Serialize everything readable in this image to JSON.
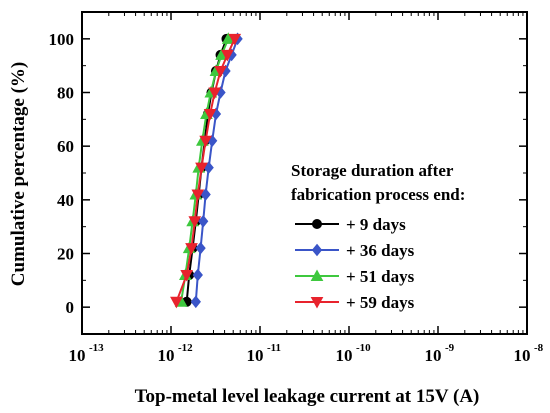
{
  "chart_data": {
    "type": "scatter",
    "xlabel": "Top-metal level leakage current at 15V (A)",
    "ylabel": "Cumulative percentage (%)",
    "xscale": "log",
    "xlim": [
      1e-13,
      1e-08
    ],
    "ylim": [
      -10,
      110
    ],
    "x_ticks": [
      {
        "value": 1e-13,
        "base": "10",
        "exp": "-13"
      },
      {
        "value": 1e-12,
        "base": "10",
        "exp": "-12"
      },
      {
        "value": 1e-11,
        "base": "10",
        "exp": "-11"
      },
      {
        "value": 1e-10,
        "base": "10",
        "exp": "-10"
      },
      {
        "value": 1e-09,
        "base": "10",
        "exp": "-9"
      },
      {
        "value": 1e-08,
        "base": "10",
        "exp": "-8"
      }
    ],
    "y_ticks": [
      0,
      20,
      40,
      60,
      80,
      100
    ],
    "legend_title_lines": [
      "Storage duration after",
      "fabrication process end:"
    ],
    "legend_position": "right",
    "grid": false,
    "series": [
      {
        "name": "+ 9  days",
        "color": "#000000",
        "marker": "circle",
        "x": [
          1.5e-12,
          1.6e-12,
          1.75e-12,
          1.9e-12,
          2.05e-12,
          2.2e-12,
          2.4e-12,
          2.6e-12,
          2.85e-12,
          3.2e-12,
          3.6e-12,
          4.2e-12
        ],
        "y": [
          2,
          12,
          22,
          32,
          42,
          52,
          62,
          72,
          80,
          88,
          94,
          100
        ]
      },
      {
        "name": "+ 36 days",
        "color": "#3a55c8",
        "marker": "diamond",
        "x": [
          1.9e-12,
          2e-12,
          2.15e-12,
          2.3e-12,
          2.45e-12,
          2.65e-12,
          2.9e-12,
          3.2e-12,
          3.6e-12,
          4.1e-12,
          4.8e-12,
          5.6e-12
        ],
        "y": [
          2,
          12,
          22,
          32,
          42,
          52,
          62,
          72,
          80,
          88,
          94,
          100
        ]
      },
      {
        "name": "+ 51 days",
        "color": "#3ec83e",
        "marker": "triangle-up",
        "x": [
          1.3e-12,
          1.45e-12,
          1.6e-12,
          1.75e-12,
          1.9e-12,
          2.05e-12,
          2.25e-12,
          2.5e-12,
          2.8e-12,
          3.2e-12,
          3.7e-12,
          4.4e-12
        ],
        "y": [
          2,
          12,
          22,
          32,
          42,
          52,
          62,
          72,
          80,
          88,
          94,
          100
        ]
      },
      {
        "name": "+ 59 days",
        "color": "#e8232d",
        "marker": "triangle-down",
        "x": [
          1.15e-12,
          1.5e-12,
          1.7e-12,
          1.85e-12,
          2e-12,
          2.2e-12,
          2.45e-12,
          2.75e-12,
          3.1e-12,
          3.6e-12,
          4.3e-12,
          5.2e-12
        ],
        "y": [
          2,
          12,
          22,
          32,
          42,
          52,
          62,
          72,
          80,
          88,
          94,
          100
        ]
      }
    ]
  }
}
